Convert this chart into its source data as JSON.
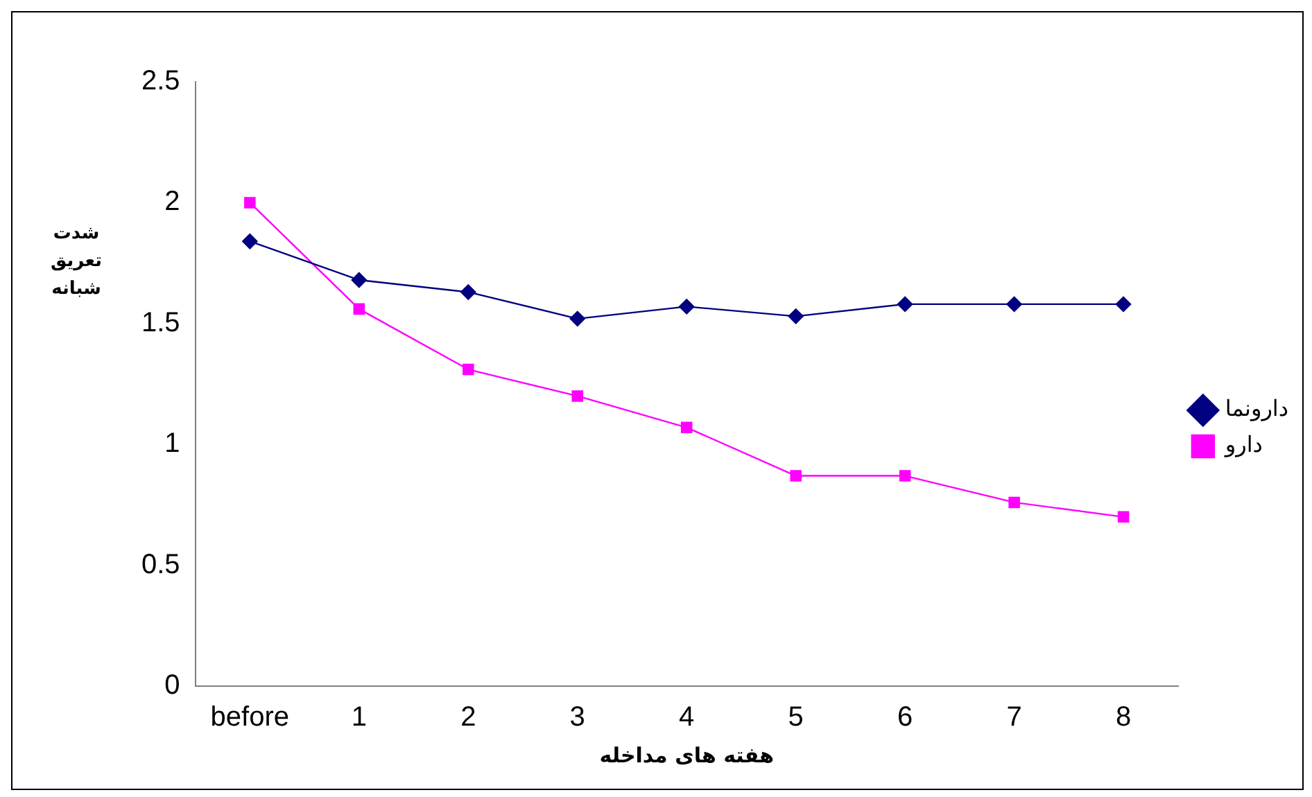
{
  "chart_data": {
    "type": "line",
    "xlabel": "هفته های مداخله",
    "ylabel": "شدت تعریق شبانه",
    "categories": [
      "before",
      "1",
      "2",
      "3",
      "4",
      "5",
      "6",
      "7",
      "8"
    ],
    "series": [
      {
        "name": "دارونما",
        "color": "#000080",
        "marker": "diamond",
        "values": [
          1.84,
          1.68,
          1.63,
          1.52,
          1.57,
          1.53,
          1.58,
          1.58,
          1.58
        ]
      },
      {
        "name": "دارو",
        "color": "#ff00ff",
        "marker": "square",
        "values": [
          2.0,
          1.56,
          1.31,
          1.2,
          1.07,
          0.87,
          0.87,
          0.76,
          0.7
        ]
      }
    ],
    "ylim": [
      0,
      2.5
    ],
    "yticks": [
      0,
      0.5,
      1,
      1.5,
      2,
      2.5
    ],
    "grid": false,
    "legend": "right"
  }
}
